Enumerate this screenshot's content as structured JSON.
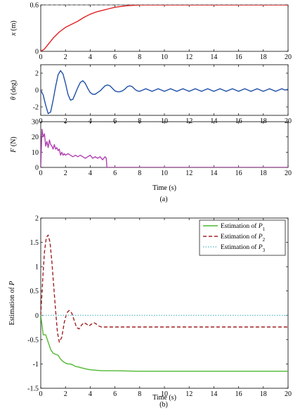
{
  "chart_data": [
    {
      "type": "line",
      "panel": "(a)",
      "ylabel": "x (m)",
      "xlim": [
        0,
        20
      ],
      "ylim": [
        0,
        0.6
      ],
      "yticks": [
        "0",
        "0.6"
      ],
      "xticks": [
        "0",
        "2",
        "4",
        "6",
        "8",
        "10",
        "12",
        "14",
        "16",
        "18",
        "20"
      ],
      "reference": {
        "y": 0.6,
        "style": "dashed",
        "color": "#888888"
      },
      "series": [
        {
          "color": "#e02020",
          "x": [
            0,
            0.3,
            0.6,
            1.0,
            1.5,
            2.0,
            2.5,
            3.0,
            3.5,
            4.0,
            4.5,
            5.0,
            5.5,
            6.0,
            6.5,
            7.0,
            7.5,
            8.0,
            9.0,
            10,
            12,
            14,
            16,
            18,
            20
          ],
          "y": [
            0,
            0.03,
            0.09,
            0.17,
            0.25,
            0.31,
            0.35,
            0.39,
            0.44,
            0.48,
            0.51,
            0.53,
            0.55,
            0.57,
            0.58,
            0.59,
            0.595,
            0.6,
            0.6,
            0.6,
            0.6,
            0.6,
            0.6,
            0.6,
            0.6
          ]
        }
      ]
    },
    {
      "type": "line",
      "ylabel": "θ (deg)",
      "xlim": [
        0,
        20
      ],
      "ylim": [
        -3,
        3
      ],
      "yticks": [
        "2",
        "0",
        "-2"
      ],
      "xticks": [
        "0",
        "2",
        "4",
        "6",
        "8",
        "10",
        "12",
        "14",
        "16",
        "18",
        "20"
      ],
      "series": [
        {
          "color": "#2050a8",
          "x": [
            0,
            0.2,
            0.4,
            0.6,
            0.8,
            1.0,
            1.2,
            1.4,
            1.6,
            1.8,
            2.0,
            2.2,
            2.4,
            2.6,
            2.8,
            3.0,
            3.2,
            3.4,
            3.6,
            3.8,
            4.0,
            4.2,
            4.4,
            4.6,
            4.8,
            5.0,
            5.2,
            5.4,
            5.6,
            5.8,
            6.0,
            6.2,
            6.4,
            6.6,
            6.8,
            7.0,
            7.2,
            7.4,
            7.6,
            7.8,
            8.0,
            8.25,
            8.5,
            8.75,
            9.0,
            9.25,
            9.5,
            9.75,
            10.0,
            10.25,
            10.5,
            10.75,
            11.0,
            11.25,
            11.5,
            11.75,
            12.0,
            12.25,
            12.5,
            12.75,
            13.0,
            13.25,
            13.5,
            13.75,
            14.0,
            14.25,
            14.5,
            14.75,
            15.0,
            15.25,
            15.5,
            15.75,
            16.0,
            16.25,
            16.5,
            16.75,
            17.0,
            17.25,
            17.5,
            17.75,
            18.0,
            18.25,
            18.5,
            18.75,
            19.0,
            19.25,
            19.5,
            19.75,
            20.0
          ],
          "y": [
            0,
            -0.6,
            -1.8,
            -2.8,
            -2.6,
            -1.2,
            0.4,
            1.8,
            2.3,
            1.9,
            0.8,
            -0.5,
            -1.2,
            -1.1,
            -0.4,
            0.3,
            0.9,
            1.1,
            0.8,
            0.2,
            -0.3,
            -0.5,
            -0.5,
            -0.3,
            -0.1,
            0.2,
            0.5,
            0.6,
            0.5,
            0.2,
            -0.1,
            -0.2,
            -0.2,
            -0.1,
            0.1,
            0.4,
            0.5,
            0.4,
            0.1,
            -0.1,
            -0.15,
            0,
            0.15,
            0,
            -0.15,
            0,
            0.15,
            0,
            -0.15,
            0,
            0.15,
            0,
            -0.15,
            0,
            0.15,
            0,
            -0.15,
            0,
            0.15,
            0,
            -0.15,
            0,
            0.15,
            0,
            -0.15,
            0,
            0.15,
            0,
            -0.15,
            0,
            0.15,
            0,
            -0.15,
            0,
            0.15,
            0,
            -0.15,
            0,
            0.15,
            0,
            -0.15,
            0,
            0.15,
            0,
            -0.15,
            0,
            0.15,
            0,
            0.1
          ]
        }
      ]
    },
    {
      "type": "line",
      "ylabel": "F (N)",
      "xlabel": "Time (s)",
      "xlim": [
        0,
        20
      ],
      "ylim": [
        0,
        30
      ],
      "yticks": [
        "30",
        "20",
        "10",
        "0"
      ],
      "xticks": [
        "0",
        "2",
        "4",
        "6",
        "8",
        "10",
        "12",
        "14",
        "16",
        "18",
        "20"
      ],
      "series": [
        {
          "color": "#b040b0",
          "x": [
            0,
            0.1,
            0.2,
            0.3,
            0.4,
            0.5,
            0.6,
            0.7,
            0.8,
            0.9,
            1.0,
            1.1,
            1.2,
            1.3,
            1.4,
            1.5,
            1.6,
            1.7,
            1.8,
            1.9,
            2.0,
            2.2,
            2.4,
            2.6,
            2.8,
            3.0,
            3.2,
            3.4,
            3.6,
            3.8,
            4.0,
            4.2,
            4.4,
            4.6,
            4.8,
            5.0,
            5.2,
            5.3,
            5.35,
            6.0,
            8.0,
            10,
            12,
            14,
            16,
            18,
            20
          ],
          "y": [
            0,
            25,
            20,
            22,
            14,
            17,
            13,
            18,
            15,
            14,
            12,
            15,
            12,
            13,
            11,
            12,
            8,
            10,
            8,
            9,
            8,
            9,
            8,
            7,
            8,
            7,
            8,
            7,
            6,
            7,
            8,
            6,
            7,
            6,
            7,
            5,
            7,
            6,
            0,
            0,
            0,
            0,
            0,
            0,
            0,
            0,
            0
          ]
        }
      ]
    },
    {
      "type": "line",
      "panel": "(b)",
      "ylabel": "Estimation of P",
      "xlabel": "Time (s)",
      "xlim": [
        0,
        20
      ],
      "ylim": [
        -1.5,
        2
      ],
      "yticks": [
        "2",
        "1.5",
        "1",
        "0.5",
        "0",
        "-0.5",
        "-1",
        "-1.5"
      ],
      "xticks": [
        "0",
        "2",
        "4",
        "6",
        "8",
        "10",
        "12",
        "14",
        "16",
        "18",
        "20"
      ],
      "legend_position": "top-right",
      "series": [
        {
          "name": "Estimation of P1",
          "legend_main": "Estimation of ",
          "legend_sym": "P",
          "legend_sub": "1",
          "color": "#4fb830",
          "dash": "solid",
          "x": [
            0,
            0.2,
            0.4,
            0.6,
            0.8,
            1.0,
            1.2,
            1.4,
            1.6,
            1.8,
            2.0,
            2.2,
            2.4,
            2.6,
            2.8,
            3.0,
            3.3,
            3.6,
            4.0,
            4.5,
            5.0,
            6.0,
            8.0,
            10,
            12,
            14,
            16,
            18,
            20
          ],
          "y": [
            0,
            -0.4,
            -0.4,
            -0.55,
            -0.7,
            -0.78,
            -0.8,
            -0.82,
            -0.9,
            -0.95,
            -0.98,
            -1.0,
            -1.0,
            -1.02,
            -1.05,
            -1.06,
            -1.08,
            -1.1,
            -1.12,
            -1.13,
            -1.14,
            -1.14,
            -1.15,
            -1.15,
            -1.15,
            -1.15,
            -1.15,
            -1.15,
            -1.15
          ]
        },
        {
          "name": "Estimation of P2",
          "legend_main": "Estimation of ",
          "legend_sym": "P",
          "legend_sub": "2",
          "color": "#a02020",
          "dash": "5,3",
          "x": [
            0,
            0.15,
            0.3,
            0.45,
            0.6,
            0.75,
            0.9,
            1.05,
            1.2,
            1.35,
            1.5,
            1.7,
            1.9,
            2.1,
            2.3,
            2.5,
            2.7,
            2.9,
            3.1,
            3.3,
            3.5,
            3.7,
            3.9,
            4.1,
            4.3,
            4.5,
            4.7,
            4.9,
            5.2,
            5.6,
            6.0,
            8.0,
            10,
            12,
            14,
            16,
            18,
            20
          ],
          "y": [
            0,
            0.7,
            1.3,
            1.6,
            1.65,
            1.5,
            1.1,
            0.6,
            0.1,
            -0.35,
            -0.55,
            -0.45,
            -0.15,
            0.05,
            0.1,
            0.05,
            -0.1,
            -0.25,
            -0.28,
            -0.2,
            -0.15,
            -0.18,
            -0.22,
            -0.18,
            -0.15,
            -0.18,
            -0.22,
            -0.24,
            -0.24,
            -0.24,
            -0.24,
            -0.24,
            -0.24,
            -0.24,
            -0.24,
            -0.24,
            -0.24,
            -0.24
          ]
        },
        {
          "name": "Estimation of P3",
          "legend_main": "Estimation of ",
          "legend_sym": "P",
          "legend_sub": "3",
          "color": "#70c0c8",
          "dash": "1.5,2",
          "x": [
            0,
            20
          ],
          "y": [
            0,
            0
          ]
        }
      ]
    }
  ]
}
